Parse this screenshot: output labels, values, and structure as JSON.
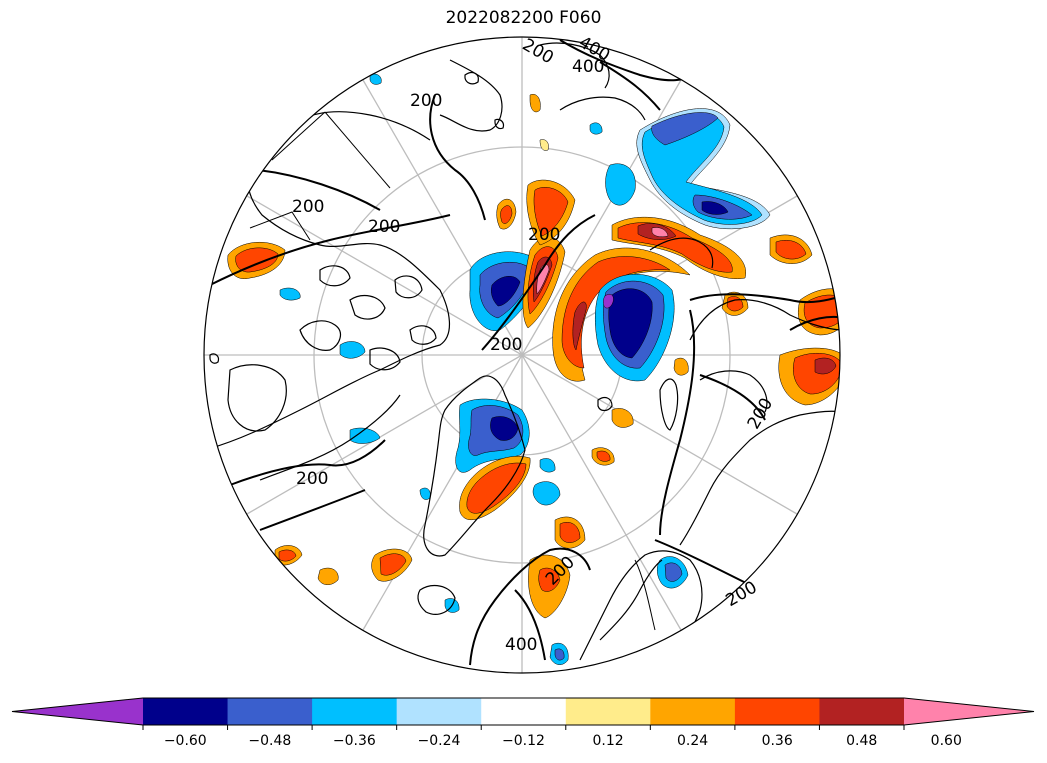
{
  "title": "2022082200 F060",
  "contour_labels": [
    "200",
    "200",
    "200",
    "200",
    "200",
    "200",
    "200",
    "200",
    "200",
    "200",
    "400",
    "400",
    "400"
  ],
  "colorbar": {
    "colors": [
      "#9932cc",
      "#00008b",
      "#3a5fcd",
      "#00bfff",
      "#b0e2ff",
      "#ffffff",
      "#ffec8b",
      "#ffa500",
      "#ff4500",
      "#b22222",
      "#ff82ab"
    ],
    "bounds": [
      -0.6,
      -0.48,
      -0.36,
      -0.24,
      -0.12,
      0.12,
      0.24,
      0.36,
      0.48,
      0.6
    ],
    "tick_labels": [
      "−0.60",
      "−0.48",
      "−0.36",
      "−0.24",
      "−0.12",
      "0.12",
      "0.24",
      "0.36",
      "0.48",
      "0.60"
    ],
    "extend": "both"
  }
}
